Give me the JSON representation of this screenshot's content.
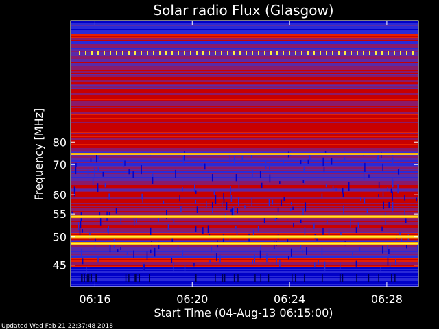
{
  "chart_data": {
    "type": "heatmap",
    "title": "Solar radio Flux (Glasgow)",
    "xlabel": "Start Time (04-Aug-13 06:15:00)",
    "ylabel": "Frequency [MHz]",
    "footer": "Updated Wed Feb 21 22:37:48 2018",
    "x_ticks": [
      {
        "label": "06:16",
        "minutes": 1
      },
      {
        "label": "06:20",
        "minutes": 5
      },
      {
        "label": "06:24",
        "minutes": 9
      },
      {
        "label": "06:28",
        "minutes": 13
      }
    ],
    "xlim_minutes": [
      0,
      14.3
    ],
    "y_ticks": [
      45,
      50,
      55,
      60,
      70,
      80
    ],
    "ylim": [
      45,
      80
    ],
    "y_scale": "reciprocal",
    "colormap": [
      "#0000c8",
      "#2a2ad8",
      "#5a2aa8",
      "#8a1a6a",
      "#c80000",
      "#e82000",
      "#ff5a00",
      "#ffaa00",
      "#ffee40"
    ],
    "emission_bands_mhz": [
      {
        "from": 48.6,
        "to": 48.9,
        "level": "high"
      },
      {
        "from": 49.9,
        "to": 50.2,
        "level": "high"
      },
      {
        "from": 54.2,
        "to": 54.5,
        "level": "high"
      },
      {
        "from": 74.3,
        "to": 74.6,
        "level": "high"
      }
    ]
  }
}
